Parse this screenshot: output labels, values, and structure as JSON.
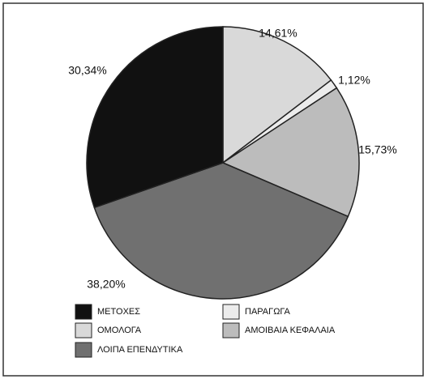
{
  "chart_data": {
    "type": "pie",
    "categories": [
      "ΟΜΟΛΟΓΑ",
      "ΠΑΡΑΓΩΓΑ",
      "ΑΜΟΙΒΑΙΑ ΚΕΦΑΛΑΙΑ",
      "ΛΟΙΠΑ ΕΠΕΝΔΥΤΙΚΑ",
      "ΜΕΤΟΧΕΣ"
    ],
    "values": [
      14.61,
      1.12,
      15.73,
      38.2,
      30.34
    ],
    "value_labels": [
      "14,61%",
      "1,12%",
      "15,73%",
      "38,20%",
      "30,34%"
    ],
    "colors": [
      "#d9d9d9",
      "#ececec",
      "#bcbcbc",
      "#707070",
      "#111111"
    ],
    "legend": "bottom"
  }
}
